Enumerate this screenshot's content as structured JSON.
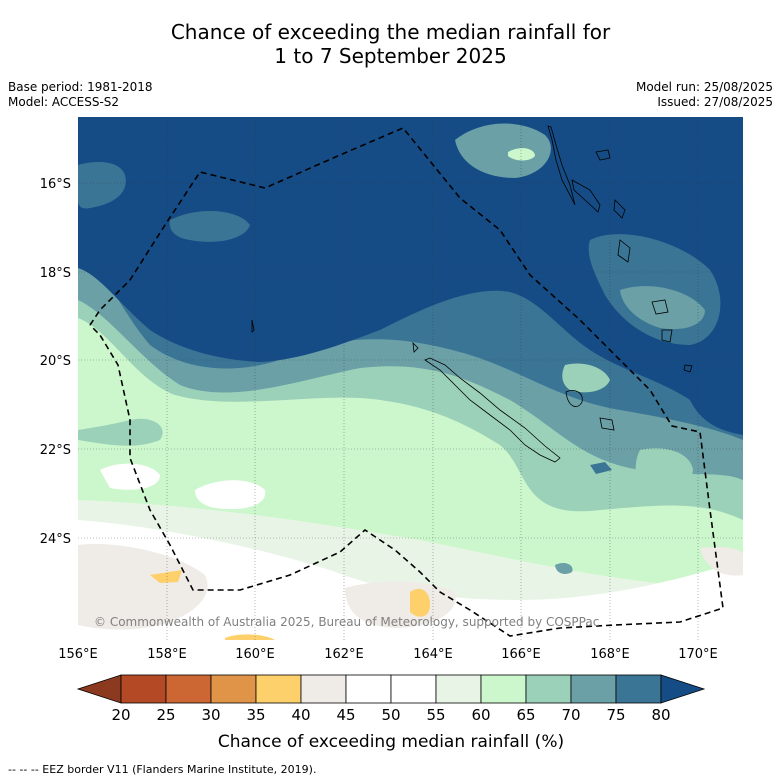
{
  "title": {
    "line1": "Chance of exceeding the median rainfall for",
    "line2": "1 to 7 September 2025"
  },
  "meta": {
    "base_period": "Base period: 1981-2018",
    "model": "Model: ACCESS-S2",
    "model_run": "Model run: 25/08/2025",
    "issued": "Issued: 27/08/2025"
  },
  "map": {
    "lat_labels": [
      "16°S",
      "18°S",
      "20°S",
      "22°S",
      "24°S"
    ],
    "lon_labels": [
      "156°E",
      "158°E",
      "160°E",
      "162°E",
      "164°E",
      "166°E",
      "168°E",
      "170°E"
    ],
    "copyright": "© Commonwealth of Australia 2025, Bureau of Meteorology, supported by COSPPac"
  },
  "colorbar": {
    "ticks": [
      "20",
      "25",
      "30",
      "35",
      "40",
      "45",
      "50",
      "55",
      "60",
      "65",
      "70",
      "75",
      "80"
    ],
    "colors": [
      "#b34a25",
      "#cc6633",
      "#e09448",
      "#fdd06c",
      "#efebe6",
      "#ffffff",
      "#ffffff",
      "#e8f5e6",
      "#ccf7cc",
      "#9bd1b8",
      "#6aa0a6",
      "#3b7595"
    ],
    "low_color": "#8c3a1f",
    "high_color": "#154c85",
    "label": "Chance of exceeding median rainfall (%)"
  },
  "footnote": "--  --  -- EEZ border V11 (Flanders Marine Institute, 2019)."
}
